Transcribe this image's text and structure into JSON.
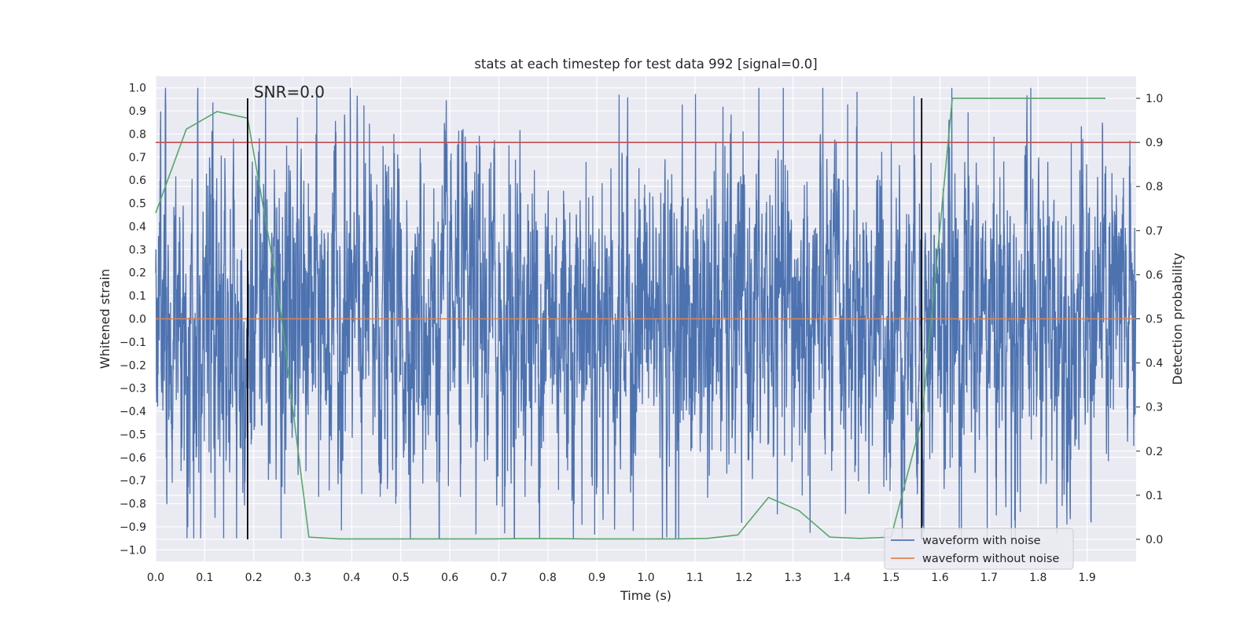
{
  "chart_data": {
    "type": "line",
    "title": "stats at each timestep for test data 992 [signal=0.0]",
    "xlabel": "Time (s)",
    "ylabel_left": "Whitened strain",
    "ylabel_right": "Detection probability",
    "xlim": [
      0.0,
      2.0
    ],
    "ylim_left": [
      -1.05,
      1.05
    ],
    "ylim_right": [
      -0.05,
      1.05
    ],
    "x_ticks": [
      0.0,
      0.1,
      0.2,
      0.3,
      0.4,
      0.5,
      0.6,
      0.7,
      0.8,
      0.9,
      1.0,
      1.1,
      1.2,
      1.3,
      1.4,
      1.5,
      1.6,
      1.7,
      1.8,
      1.9
    ],
    "x_tick_labels": [
      "0.0",
      "0.1",
      "0.2",
      "0.3",
      "0.4",
      "0.5",
      "0.6",
      "0.7",
      "0.8",
      "0.9",
      "1.0",
      "1.1",
      "1.2",
      "1.3",
      "1.4",
      "1.5",
      "1.6",
      "1.7",
      "1.8",
      "1.9"
    ],
    "y_left_ticks": [
      1.0,
      0.9,
      0.8,
      0.7,
      0.6,
      0.5,
      0.4,
      0.3,
      0.2,
      0.1,
      0.0,
      -0.1,
      -0.2,
      -0.3,
      -0.4,
      -0.5,
      -0.6,
      -0.7,
      -0.8,
      -0.9,
      -1.0
    ],
    "y_left_tick_labels": [
      "1.0",
      "0.9",
      "0.8",
      "0.7",
      "0.6",
      "0.5",
      "0.4",
      "0.3",
      "0.2",
      "0.1",
      "0.0",
      "−0.1",
      "−0.2",
      "−0.3",
      "−0.4",
      "−0.5",
      "−0.6",
      "−0.7",
      "−0.8",
      "−0.9",
      "−1.0"
    ],
    "y_right_ticks": [
      1.0,
      0.9,
      0.8,
      0.7,
      0.6,
      0.5,
      0.4,
      0.3,
      0.2,
      0.1,
      0.0
    ],
    "y_right_tick_labels": [
      "1.0",
      "0.9",
      "0.8",
      "0.7",
      "0.6",
      "0.5",
      "0.4",
      "0.3",
      "0.2",
      "0.1",
      "0.0"
    ],
    "grid": true,
    "annotation": "SNR=0.0",
    "legend": {
      "placement": "lower-right",
      "entries": [
        {
          "label": "waveform with noise",
          "color": "#4c72b0"
        },
        {
          "label": "waveform without noise",
          "color": "#dd8452"
        }
      ]
    },
    "series": [
      {
        "name": "waveform with noise",
        "axis": "left",
        "color": "#4c72b0",
        "n_samples": 4096,
        "sample_rate_hz": 2048,
        "noise_amplitude_max": 1.0,
        "noise_amplitude_min": -0.95
      },
      {
        "name": "waveform without noise",
        "axis": "left",
        "color": "#dd8452",
        "x": [
          0.0,
          2.0
        ],
        "y": [
          0.0,
          0.0
        ]
      },
      {
        "axis": "right",
        "color": "#55a868",
        "x": [
          0.0,
          0.0625,
          0.125,
          0.1875,
          0.25,
          0.3125,
          0.375,
          0.4375,
          0.5,
          0.5625,
          0.625,
          0.6875,
          0.75,
          0.8125,
          0.875,
          0.9375,
          1.0,
          1.0625,
          1.125,
          1.1875,
          1.25,
          1.3125,
          1.375,
          1.4375,
          1.5,
          1.5625,
          1.625,
          1.6875,
          1.75,
          1.8125,
          1.875,
          1.9375
        ],
        "y": [
          0.74,
          0.93,
          0.97,
          0.955,
          0.56,
          0.005,
          0.001,
          0.001,
          0.001,
          0.001,
          0.001,
          0.001,
          0.0015,
          0.0015,
          0.001,
          0.001,
          0.001,
          0.001,
          0.002,
          0.01,
          0.095,
          0.065,
          0.005,
          0.002,
          0.005,
          0.27,
          1.0,
          1.0,
          1.0,
          1.0,
          1.0,
          1.0
        ]
      },
      {
        "axis": "right",
        "color": "#c44e52",
        "x": [
          0.0,
          2.0
        ],
        "y": [
          0.9,
          0.9
        ]
      }
    ],
    "vertical_lines": [
      {
        "x": 0.1875,
        "y_range_right": [
          0.0,
          1.0
        ],
        "color": "#000000"
      },
      {
        "x": 1.5625,
        "y_range_right": [
          0.0,
          1.0
        ],
        "color": "#000000"
      }
    ]
  }
}
